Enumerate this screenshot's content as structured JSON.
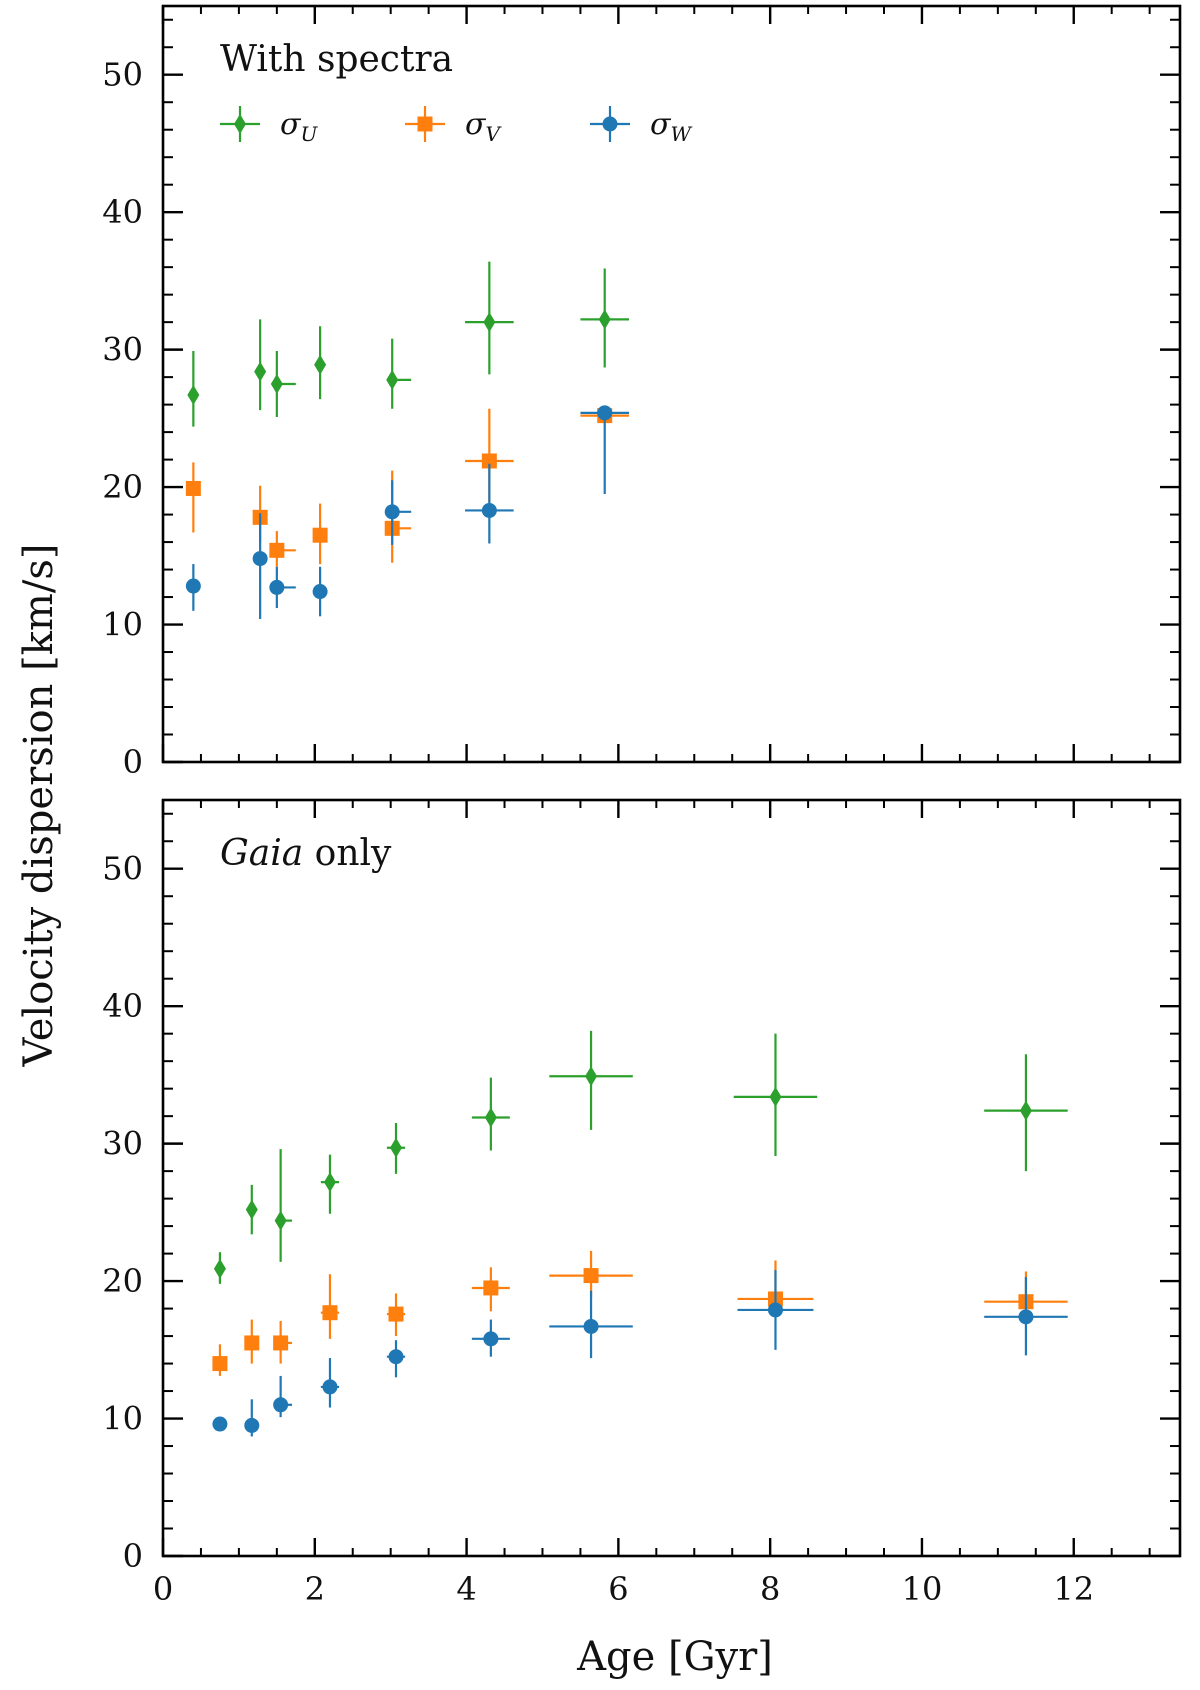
{
  "chart_data": {
    "type": "scatter",
    "xlabel": "Age [Gyr]",
    "ylabel": "Velocity dispersion [km/s]",
    "xlim": [
      0,
      13.4
    ],
    "ylim": [
      0,
      55
    ],
    "x_ticks": [
      0,
      2,
      4,
      6,
      8,
      10,
      12
    ],
    "y_ticks": [
      0,
      10,
      20,
      30,
      40,
      50
    ],
    "legend": {
      "placement": "top-left",
      "entries": [
        {
          "key": "U",
          "symbol": "σ",
          "subscript": "U",
          "marker": "diamond",
          "color": "#2ca02c"
        },
        {
          "key": "V",
          "symbol": "σ",
          "subscript": "V",
          "marker": "square",
          "color": "#ff7f0e"
        },
        {
          "key": "W",
          "symbol": "σ",
          "subscript": "W",
          "marker": "circle",
          "color": "#1f77b4"
        }
      ]
    },
    "panels": [
      {
        "label": "With spectra",
        "label_italic": "",
        "series": [
          {
            "name": "σU",
            "key": "U",
            "color": "#2ca02c",
            "marker": "diamond",
            "points": [
              {
                "x": 0.4,
                "y": 26.7,
                "yerr": [
                  2.3,
                  3.2
                ],
                "xerr": [
                  0.0,
                  0.0
                ]
              },
              {
                "x": 1.28,
                "y": 28.4,
                "yerr": [
                  2.8,
                  3.8
                ],
                "xerr": [
                  0.0,
                  0.0
                ]
              },
              {
                "x": 1.5,
                "y": 27.5,
                "yerr": [
                  2.4,
                  2.4
                ],
                "xerr": [
                  0.0,
                  0.25
                ]
              },
              {
                "x": 2.07,
                "y": 28.9,
                "yerr": [
                  2.5,
                  2.8
                ],
                "xerr": [
                  0.0,
                  0.0
                ]
              },
              {
                "x": 3.02,
                "y": 27.8,
                "yerr": [
                  2.1,
                  3.0
                ],
                "xerr": [
                  0.0,
                  0.25
                ]
              },
              {
                "x": 4.3,
                "y": 32.0,
                "yerr": [
                  3.8,
                  4.4
                ],
                "xerr": [
                  0.32,
                  0.32
                ]
              },
              {
                "x": 5.82,
                "y": 32.2,
                "yerr": [
                  3.5,
                  3.7
                ],
                "xerr": [
                  0.32,
                  0.32
                ]
              }
            ]
          },
          {
            "name": "σV",
            "key": "V",
            "color": "#ff7f0e",
            "marker": "square",
            "points": [
              {
                "x": 0.4,
                "y": 19.9,
                "yerr": [
                  3.2,
                  1.9
                ],
                "xerr": [
                  0.0,
                  0.0
                ]
              },
              {
                "x": 1.28,
                "y": 17.8,
                "yerr": [
                  1.8,
                  2.3
                ],
                "xerr": [
                  0.0,
                  0.0
                ]
              },
              {
                "x": 1.5,
                "y": 15.4,
                "yerr": [
                  1.2,
                  1.4
                ],
                "xerr": [
                  0.0,
                  0.25
                ]
              },
              {
                "x": 2.07,
                "y": 16.5,
                "yerr": [
                  2.1,
                  2.3
                ],
                "xerr": [
                  0.0,
                  0.0
                ]
              },
              {
                "x": 3.02,
                "y": 17.0,
                "yerr": [
                  2.5,
                  4.2
                ],
                "xerr": [
                  0.0,
                  0.25
                ]
              },
              {
                "x": 4.3,
                "y": 21.9,
                "yerr": [
                  3.0,
                  3.8
                ],
                "xerr": [
                  0.32,
                  0.32
                ]
              },
              {
                "x": 5.82,
                "y": 25.2,
                "yerr": [
                  0.0,
                  0.0
                ],
                "xerr": [
                  0.32,
                  0.32
                ]
              }
            ]
          },
          {
            "name": "σW",
            "key": "W",
            "color": "#1f77b4",
            "marker": "circle",
            "points": [
              {
                "x": 0.4,
                "y": 12.8,
                "yerr": [
                  1.8,
                  1.6
                ],
                "xerr": [
                  0.0,
                  0.0
                ]
              },
              {
                "x": 1.28,
                "y": 14.8,
                "yerr": [
                  4.4,
                  3.3
                ],
                "xerr": [
                  0.0,
                  0.0
                ]
              },
              {
                "x": 1.5,
                "y": 12.7,
                "yerr": [
                  1.5,
                  1.5
                ],
                "xerr": [
                  0.0,
                  0.25
                ]
              },
              {
                "x": 2.07,
                "y": 12.4,
                "yerr": [
                  1.8,
                  1.8
                ],
                "xerr": [
                  0.0,
                  0.0
                ]
              },
              {
                "x": 3.02,
                "y": 18.2,
                "yerr": [
                  2.4,
                  2.3
                ],
                "xerr": [
                  0.0,
                  0.25
                ]
              },
              {
                "x": 4.3,
                "y": 18.3,
                "yerr": [
                  2.4,
                  3.4
                ],
                "xerr": [
                  0.32,
                  0.32
                ]
              },
              {
                "x": 5.82,
                "y": 25.4,
                "yerr": [
                  5.9,
                  0.0
                ],
                "xerr": [
                  0.32,
                  0.32
                ]
              }
            ]
          }
        ]
      },
      {
        "label": "only",
        "label_italic": "Gaia",
        "series": [
          {
            "name": "σU",
            "key": "U",
            "color": "#2ca02c",
            "marker": "diamond",
            "points": [
              {
                "x": 0.75,
                "y": 20.9,
                "yerr": [
                  1.1,
                  1.2
                ],
                "xerr": [
                  0.0,
                  0.0
                ]
              },
              {
                "x": 1.17,
                "y": 25.2,
                "yerr": [
                  1.8,
                  1.8
                ],
                "xerr": [
                  0.0,
                  0.0
                ]
              },
              {
                "x": 1.55,
                "y": 24.4,
                "yerr": [
                  3.0,
                  5.2
                ],
                "xerr": [
                  0.0,
                  0.15
                ]
              },
              {
                "x": 2.2,
                "y": 27.2,
                "yerr": [
                  2.3,
                  2.0
                ],
                "xerr": [
                  0.12,
                  0.12
                ]
              },
              {
                "x": 3.07,
                "y": 29.7,
                "yerr": [
                  1.9,
                  1.8
                ],
                "xerr": [
                  0.12,
                  0.12
                ]
              },
              {
                "x": 4.32,
                "y": 31.9,
                "yerr": [
                  2.4,
                  2.9
                ],
                "xerr": [
                  0.25,
                  0.25
                ]
              },
              {
                "x": 5.64,
                "y": 34.9,
                "yerr": [
                  3.9,
                  3.3
                ],
                "xerr": [
                  0.55,
                  0.55
                ]
              },
              {
                "x": 8.07,
                "y": 33.4,
                "yerr": [
                  4.3,
                  4.6
                ],
                "xerr": [
                  0.55,
                  0.55
                ]
              },
              {
                "x": 11.37,
                "y": 32.4,
                "yerr": [
                  4.4,
                  4.1
                ],
                "xerr": [
                  0.55,
                  0.55
                ]
              }
            ]
          },
          {
            "name": "σV",
            "key": "V",
            "color": "#ff7f0e",
            "marker": "square",
            "points": [
              {
                "x": 0.75,
                "y": 14.0,
                "yerr": [
                  0.9,
                  1.4
                ],
                "xerr": [
                  0.0,
                  0.0
                ]
              },
              {
                "x": 1.17,
                "y": 15.5,
                "yerr": [
                  1.5,
                  1.7
                ],
                "xerr": [
                  0.0,
                  0.0
                ]
              },
              {
                "x": 1.55,
                "y": 15.5,
                "yerr": [
                  1.5,
                  1.6
                ],
                "xerr": [
                  0.0,
                  0.15
                ]
              },
              {
                "x": 2.2,
                "y": 17.7,
                "yerr": [
                  1.9,
                  2.8
                ],
                "xerr": [
                  0.12,
                  0.12
                ]
              },
              {
                "x": 3.07,
                "y": 17.6,
                "yerr": [
                  1.6,
                  1.5
                ],
                "xerr": [
                  0.12,
                  0.12
                ]
              },
              {
                "x": 4.32,
                "y": 19.5,
                "yerr": [
                  1.7,
                  1.5
                ],
                "xerr": [
                  0.25,
                  0.25
                ]
              },
              {
                "x": 5.64,
                "y": 20.4,
                "yerr": [
                  1.6,
                  1.8
                ],
                "xerr": [
                  0.55,
                  0.55
                ]
              },
              {
                "x": 8.07,
                "y": 18.7,
                "yerr": [
                  0.0,
                  2.8
                ],
                "xerr": [
                  0.5,
                  0.5
                ]
              },
              {
                "x": 11.37,
                "y": 18.5,
                "yerr": [
                  0.0,
                  2.2
                ],
                "xerr": [
                  0.55,
                  0.55
                ]
              }
            ]
          },
          {
            "name": "σW",
            "key": "W",
            "color": "#1f77b4",
            "marker": "circle",
            "points": [
              {
                "x": 0.75,
                "y": 9.6,
                "yerr": [
                  0.0,
                  0.0
                ],
                "xerr": [
                  0.0,
                  0.0
                ]
              },
              {
                "x": 1.17,
                "y": 9.5,
                "yerr": [
                  0.8,
                  1.9
                ],
                "xerr": [
                  0.0,
                  0.0
                ]
              },
              {
                "x": 1.55,
                "y": 11.0,
                "yerr": [
                  0.9,
                  2.1
                ],
                "xerr": [
                  0.0,
                  0.15
                ]
              },
              {
                "x": 2.2,
                "y": 12.3,
                "yerr": [
                  1.5,
                  2.1
                ],
                "xerr": [
                  0.12,
                  0.12
                ]
              },
              {
                "x": 3.07,
                "y": 14.5,
                "yerr": [
                  1.5,
                  1.2
                ],
                "xerr": [
                  0.12,
                  0.12
                ]
              },
              {
                "x": 4.32,
                "y": 15.8,
                "yerr": [
                  1.3,
                  1.4
                ],
                "xerr": [
                  0.25,
                  0.25
                ]
              },
              {
                "x": 5.64,
                "y": 16.7,
                "yerr": [
                  2.3,
                  2.6
                ],
                "xerr": [
                  0.55,
                  0.55
                ]
              },
              {
                "x": 8.07,
                "y": 17.9,
                "yerr": [
                  2.9,
                  2.9
                ],
                "xerr": [
                  0.5,
                  0.5
                ]
              },
              {
                "x": 11.37,
                "y": 17.4,
                "yerr": [
                  2.8,
                  2.9
                ],
                "xerr": [
                  0.55,
                  0.55
                ]
              }
            ]
          }
        ]
      }
    ]
  }
}
